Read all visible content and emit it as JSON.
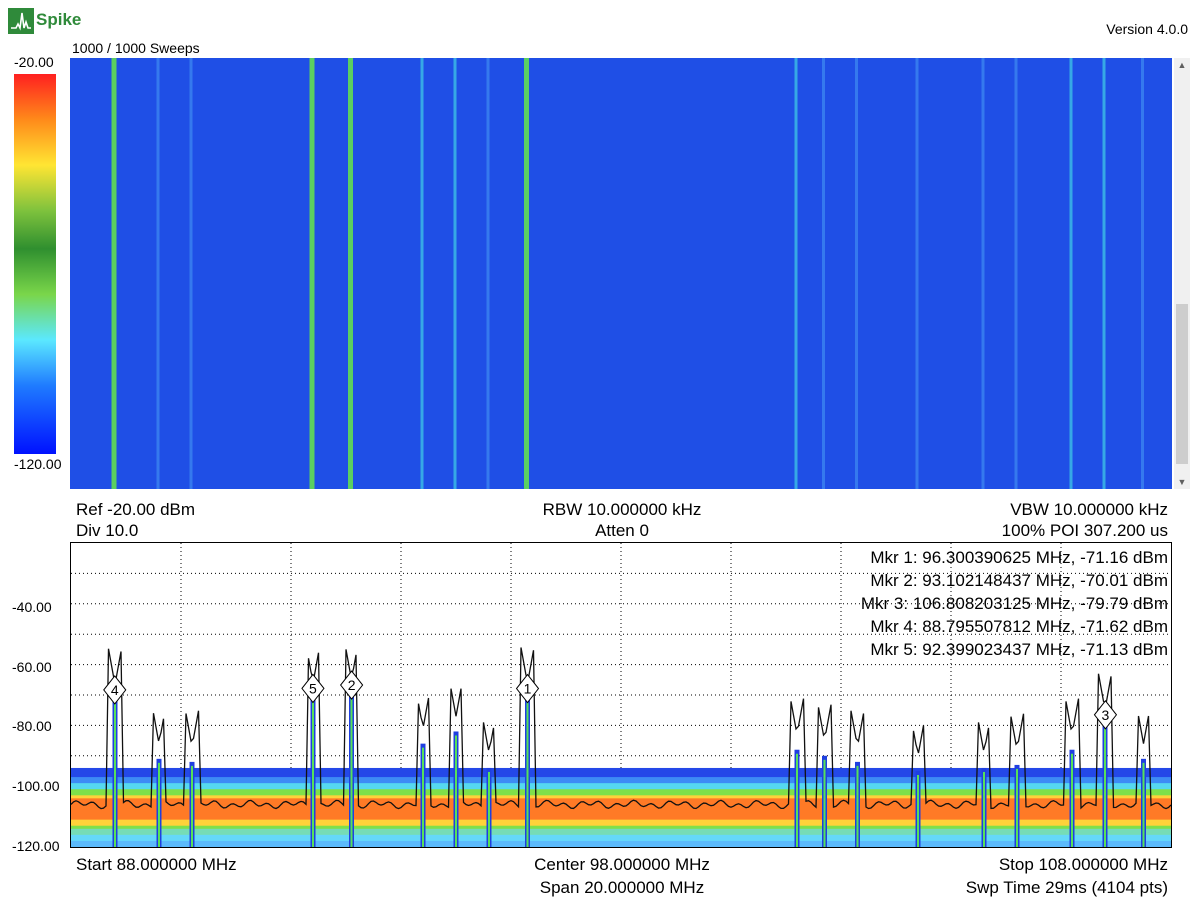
{
  "app": {
    "logo_text": "Spike",
    "version": "Version 4.0.0"
  },
  "waterfall": {
    "sweeps_label": "1000 / 1000 Sweeps",
    "scale_max": "-20.00",
    "scale_min": "-120.00"
  },
  "settings": {
    "ref": "Ref -20.00 dBm",
    "div": "Div 10.0",
    "rbw": "RBW 10.000000 kHz",
    "atten": "Atten 0",
    "vbw": "VBW 10.000000 kHz",
    "poi": "100% POI 307.200 us"
  },
  "spectrum": {
    "y_ticks": [
      "-40.00",
      "-60.00",
      "-80.00",
      "-100.00",
      "-120.00"
    ],
    "markers": [
      {
        "label": "Mkr 1: 96.300390625 MHz, -71.16 dBm",
        "num": "1"
      },
      {
        "label": "Mkr 2: 93.102148437 MHz, -70.01 dBm",
        "num": "2"
      },
      {
        "label": "Mkr 3: 106.808203125 MHz, -79.79 dBm",
        "num": "3"
      },
      {
        "label": "Mkr 4: 88.795507812 MHz, -71.62 dBm",
        "num": "4"
      },
      {
        "label": "Mkr 5: 92.399023437 MHz, -71.13 dBm",
        "num": "5"
      }
    ]
  },
  "footer": {
    "start": "Start 88.000000 MHz",
    "center": "Center 98.000000 MHz",
    "stop": "Stop 108.000000 MHz",
    "span": "Span 20.000000 MHz",
    "swp": "Swp Time 29ms (4104 pts)"
  },
  "chart_data": {
    "type": "line",
    "x_range_mhz": [
      88,
      108
    ],
    "y_range_dbm": [
      -120,
      -20
    ],
    "grid": true,
    "markers": [
      {
        "freq_mhz": 96.300390625,
        "dbm": -71.16
      },
      {
        "freq_mhz": 93.102148437,
        "dbm": -70.01
      },
      {
        "freq_mhz": 106.808203125,
        "dbm": -79.79
      },
      {
        "freq_mhz": 88.795507812,
        "dbm": -71.62
      },
      {
        "freq_mhz": 92.399023437,
        "dbm": -71.13
      }
    ],
    "peaks": [
      {
        "freq_mhz": 88.8,
        "dbm": -71.6
      },
      {
        "freq_mhz": 89.6,
        "dbm": -91
      },
      {
        "freq_mhz": 90.2,
        "dbm": -92
      },
      {
        "freq_mhz": 92.4,
        "dbm": -71.1
      },
      {
        "freq_mhz": 93.1,
        "dbm": -70.0
      },
      {
        "freq_mhz": 94.4,
        "dbm": -86
      },
      {
        "freq_mhz": 95.0,
        "dbm": -82
      },
      {
        "freq_mhz": 95.6,
        "dbm": -94
      },
      {
        "freq_mhz": 96.3,
        "dbm": -71.2
      },
      {
        "freq_mhz": 101.2,
        "dbm": -88
      },
      {
        "freq_mhz": 101.7,
        "dbm": -90
      },
      {
        "freq_mhz": 102.3,
        "dbm": -92
      },
      {
        "freq_mhz": 103.4,
        "dbm": -95
      },
      {
        "freq_mhz": 104.6,
        "dbm": -94
      },
      {
        "freq_mhz": 105.2,
        "dbm": -93
      },
      {
        "freq_mhz": 106.2,
        "dbm": -88
      },
      {
        "freq_mhz": 106.8,
        "dbm": -79.8
      },
      {
        "freq_mhz": 107.5,
        "dbm": -91
      }
    ]
  }
}
